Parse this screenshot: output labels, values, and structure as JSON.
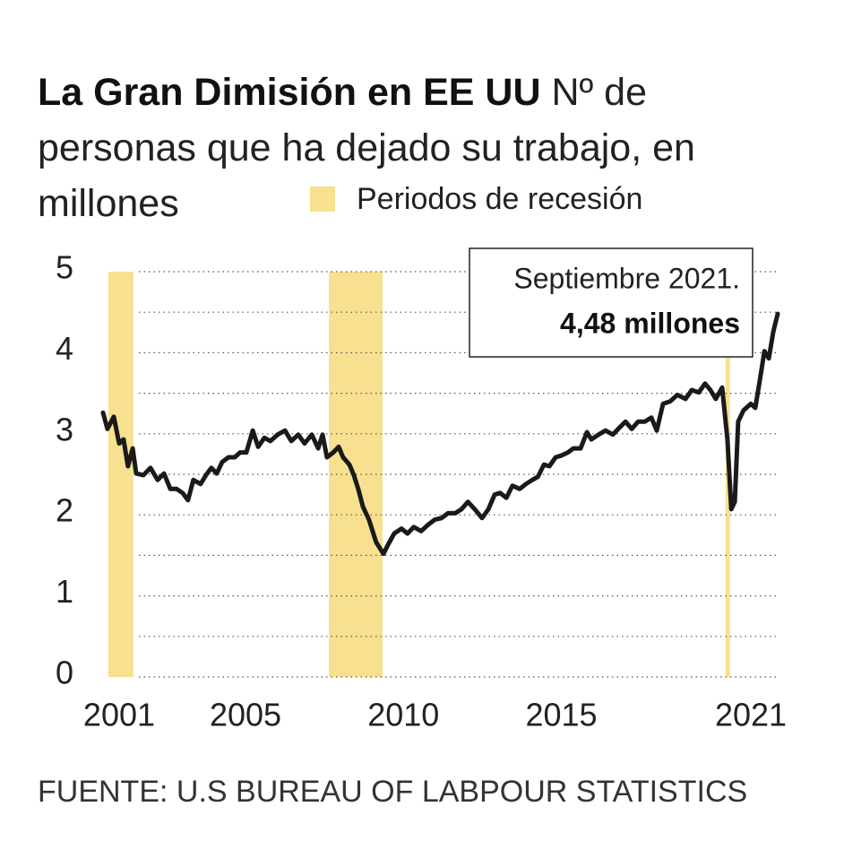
{
  "chart_data": {
    "type": "line",
    "title": "La Gran Dimisión en EE UU",
    "subtitle": "Nº de personas que ha dejado su trabajo, en millones",
    "legend_label": "Periodos de recesión",
    "recession_color": "#f7e08f",
    "recessions": [
      [
        2000.66,
        2001.45
      ],
      [
        2007.64,
        2009.34
      ],
      [
        2020.2,
        2020.34
      ]
    ],
    "annotation": {
      "text": "Septiembre 2021.",
      "value_text": "4,48 millones"
    },
    "source": "FUENTE: U.S BUREAU OF LABPOUR STATISTICS",
    "xlim": [
      2000.49,
      2021.85
    ],
    "xticks": [
      2001,
      2005,
      2010,
      2015,
      2021
    ],
    "ylim": [
      0,
      5
    ],
    "yticks": [
      0,
      1,
      2,
      3,
      4,
      5
    ],
    "minor_yticks": [
      0.5,
      1.5,
      2.5,
      3.5,
      4.5
    ],
    "grid": true,
    "series": [
      {
        "color": "#1a1a1a",
        "x": [
          2000.49,
          2000.63,
          2000.83,
          2001.0,
          2001.14,
          2001.28,
          2001.43,
          2001.54,
          2001.77,
          2001.99,
          2002.22,
          2002.42,
          2002.62,
          2002.82,
          2003.01,
          2003.18,
          2003.35,
          2003.58,
          2003.75,
          2003.92,
          2004.09,
          2004.26,
          2004.46,
          2004.66,
          2004.83,
          2005.03,
          2005.23,
          2005.4,
          2005.6,
          2005.79,
          2006.02,
          2006.25,
          2006.45,
          2006.67,
          2006.87,
          2007.1,
          2007.3,
          2007.44,
          2007.58,
          2007.78,
          2007.95,
          2008.09,
          2008.29,
          2008.43,
          2008.57,
          2008.72,
          2008.91,
          2009.14,
          2009.37,
          2009.51,
          2009.71,
          2009.94,
          2010.13,
          2010.33,
          2010.56,
          2010.79,
          2010.99,
          2011.21,
          2011.41,
          2011.64,
          2011.84,
          2012.04,
          2012.26,
          2012.49,
          2012.69,
          2012.89,
          2013.06,
          2013.26,
          2013.45,
          2013.68,
          2013.88,
          2014.08,
          2014.26,
          2014.45,
          2014.62,
          2014.82,
          2014.99,
          2015.21,
          2015.38,
          2015.61,
          2015.81,
          2015.95,
          2016.18,
          2016.4,
          2016.63,
          2016.8,
          2017.03,
          2017.23,
          2017.43,
          2017.65,
          2017.85,
          2018.02,
          2018.22,
          2018.45,
          2018.67,
          2018.93,
          2019.13,
          2019.35,
          2019.55,
          2019.72,
          2019.89,
          2020.09,
          2020.26,
          2020.38,
          2020.49,
          2020.6,
          2020.77,
          2021.0,
          2021.14,
          2021.28,
          2021.43,
          2021.57,
          2021.71,
          2021.85
        ],
        "values": [
          3.26,
          3.06,
          3.21,
          2.88,
          2.93,
          2.6,
          2.82,
          2.51,
          2.49,
          2.58,
          2.43,
          2.51,
          2.32,
          2.32,
          2.27,
          2.18,
          2.43,
          2.38,
          2.49,
          2.58,
          2.51,
          2.65,
          2.71,
          2.71,
          2.77,
          2.77,
          3.04,
          2.84,
          2.95,
          2.91,
          2.99,
          3.04,
          2.91,
          2.99,
          2.88,
          2.99,
          2.82,
          2.99,
          2.71,
          2.77,
          2.84,
          2.71,
          2.62,
          2.49,
          2.32,
          2.1,
          1.94,
          1.66,
          1.52,
          1.63,
          1.77,
          1.83,
          1.77,
          1.85,
          1.8,
          1.88,
          1.94,
          1.96,
          2.02,
          2.02,
          2.07,
          2.16,
          2.07,
          1.96,
          2.07,
          2.25,
          2.27,
          2.21,
          2.36,
          2.32,
          2.38,
          2.43,
          2.47,
          2.62,
          2.6,
          2.71,
          2.73,
          2.77,
          2.82,
          2.82,
          3.02,
          2.93,
          2.99,
          3.04,
          2.99,
          3.06,
          3.15,
          3.06,
          3.15,
          3.15,
          3.2,
          3.04,
          3.37,
          3.4,
          3.48,
          3.43,
          3.54,
          3.51,
          3.62,
          3.54,
          3.43,
          3.57,
          2.93,
          2.07,
          2.16,
          3.15,
          3.29,
          3.37,
          3.32,
          3.65,
          4.02,
          3.93,
          4.26,
          4.48
        ]
      }
    ]
  }
}
